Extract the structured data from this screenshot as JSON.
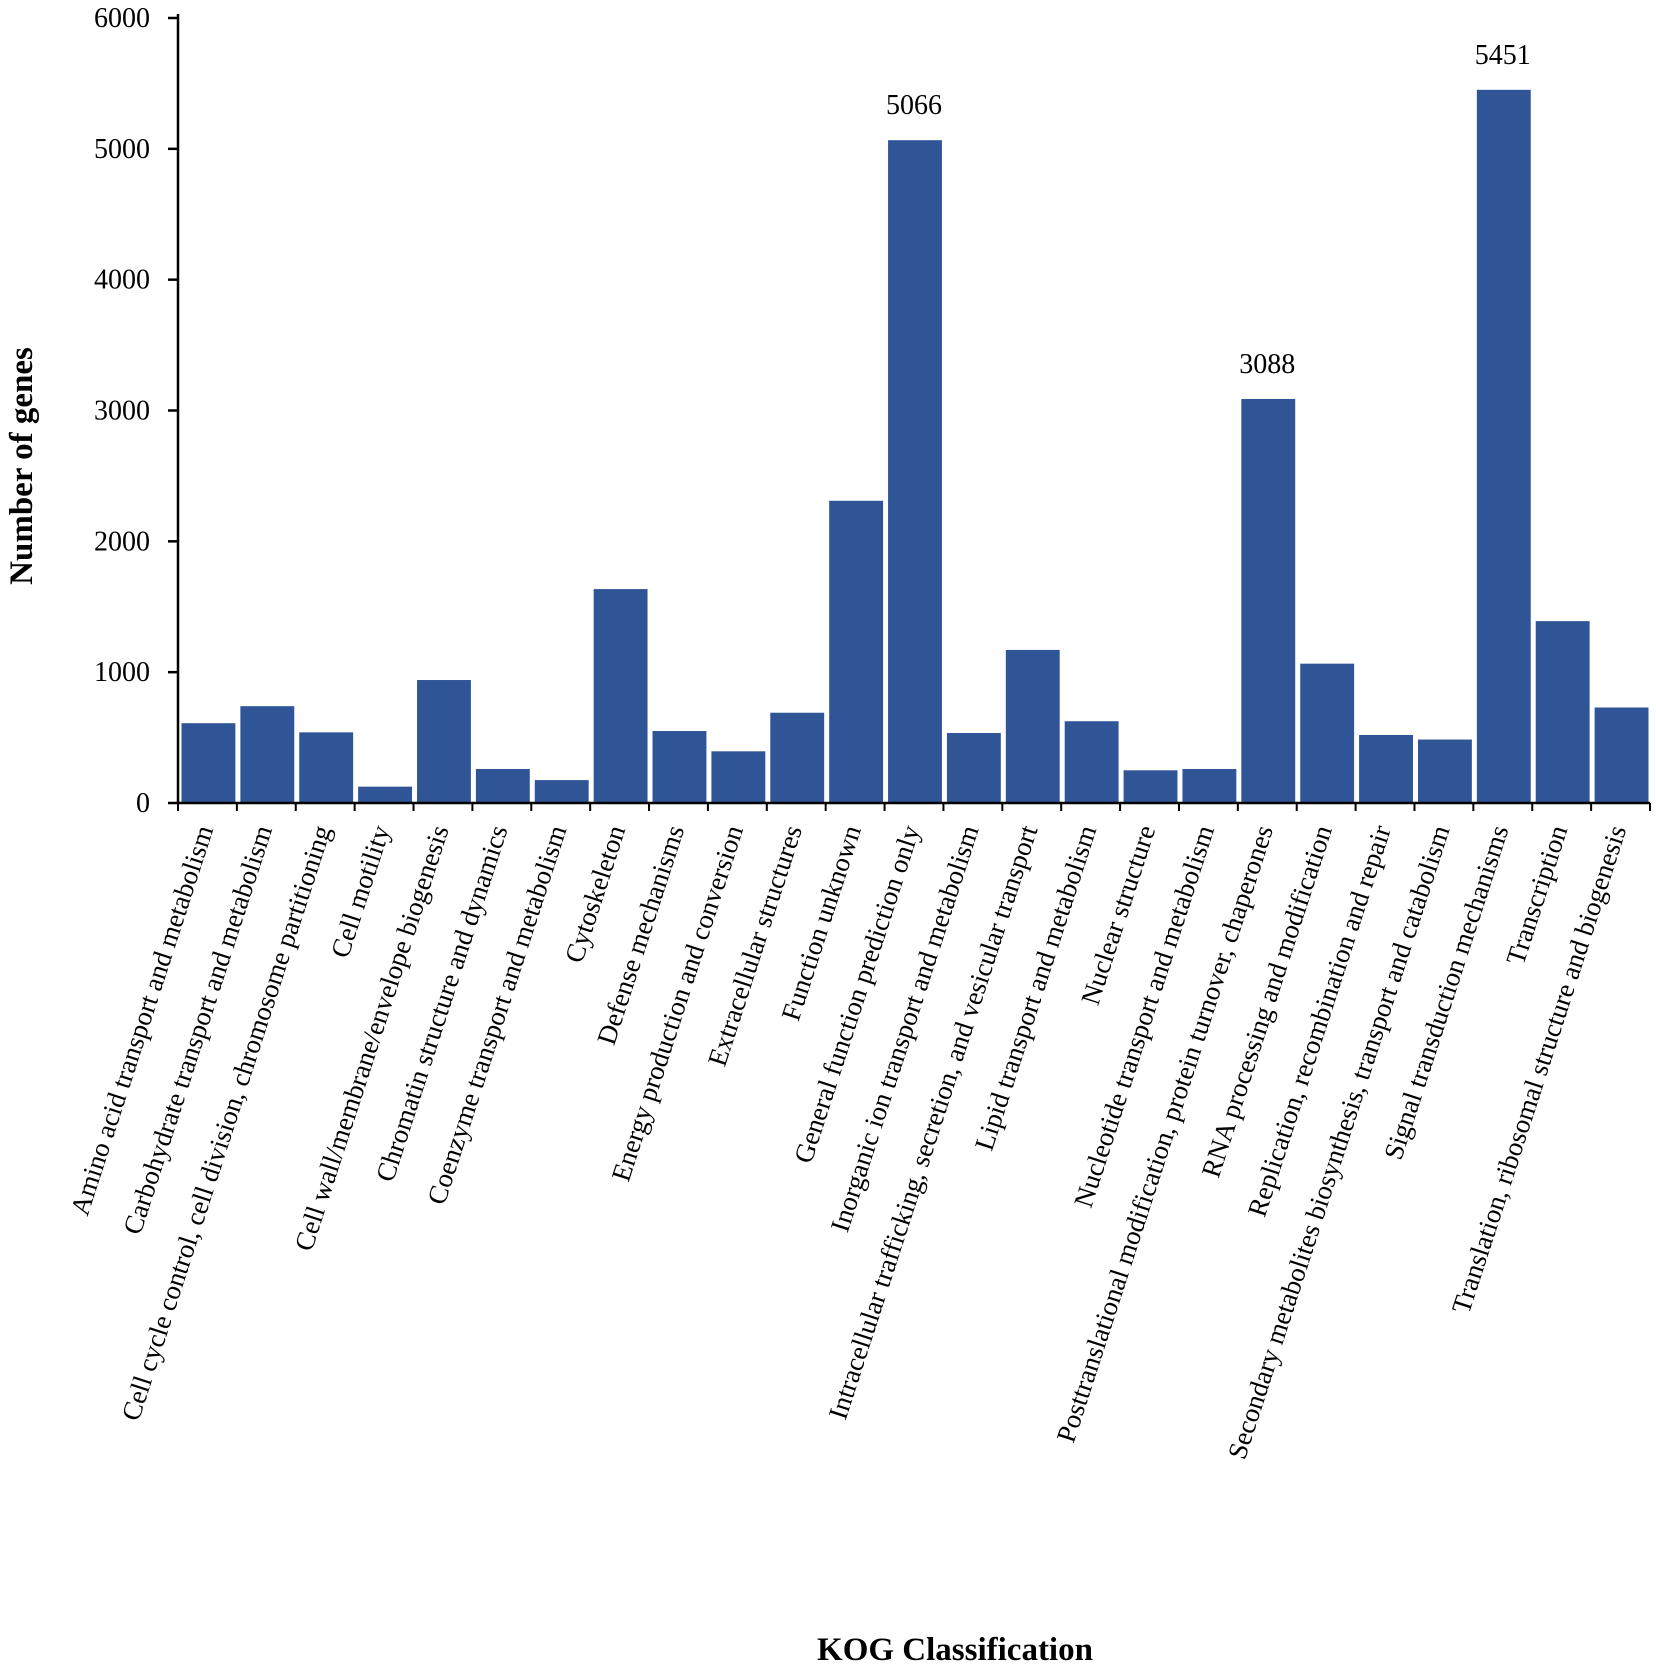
{
  "chart_data": {
    "type": "bar",
    "title": "",
    "xlabel": "KOG Classification",
    "ylabel": "Number of  genes",
    "ylim": [
      0,
      6000
    ],
    "yticks": [
      "0",
      "1000",
      "2000",
      "3000",
      "4000",
      "5000",
      "6000"
    ],
    "bar_color": "#2F5597",
    "grid": false,
    "categories": [
      "Amino acid transport and metabolism",
      "Carbohydrate transport and metabolism",
      "Cell cycle control, cell division, chromosome partitioning",
      "Cell motility",
      "Cell wall/membrane/envelope biogenesis",
      "Chromatin structure and dynamics",
      "Coenzyme transport and metabolism",
      "Cytoskeleton",
      "Defense mechanisms",
      "Energy production and conversion",
      "Extracellular structures",
      "Function unknown",
      "General function prediction only",
      "Inorganic ion transport and metabolism",
      "Intracellular trafficking, secretion, and vesicular transport",
      "Lipid transport and metabolism",
      "Nuclear structure",
      "Nucleotide transport and metabolism",
      "Posttranslational modification, protein turnover, chaperones",
      "RNA processing and modification",
      "Replication, recombination and repair",
      "Secondary metabolites biosynthesis, transport and catabolism",
      "Signal transduction mechanisms",
      "Transcription",
      "Translation, ribosomal structure and biogenesis"
    ],
    "values": [
      610,
      740,
      540,
      125,
      940,
      260,
      175,
      1635,
      550,
      395,
      690,
      2310,
      5066,
      535,
      1170,
      625,
      250,
      260,
      3088,
      1065,
      520,
      485,
      5451,
      1390,
      730
    ],
    "data_labels": [
      {
        "index": 12,
        "text": "5066"
      },
      {
        "index": 18,
        "text": "3088"
      },
      {
        "index": 22,
        "text": "5451"
      }
    ]
  }
}
